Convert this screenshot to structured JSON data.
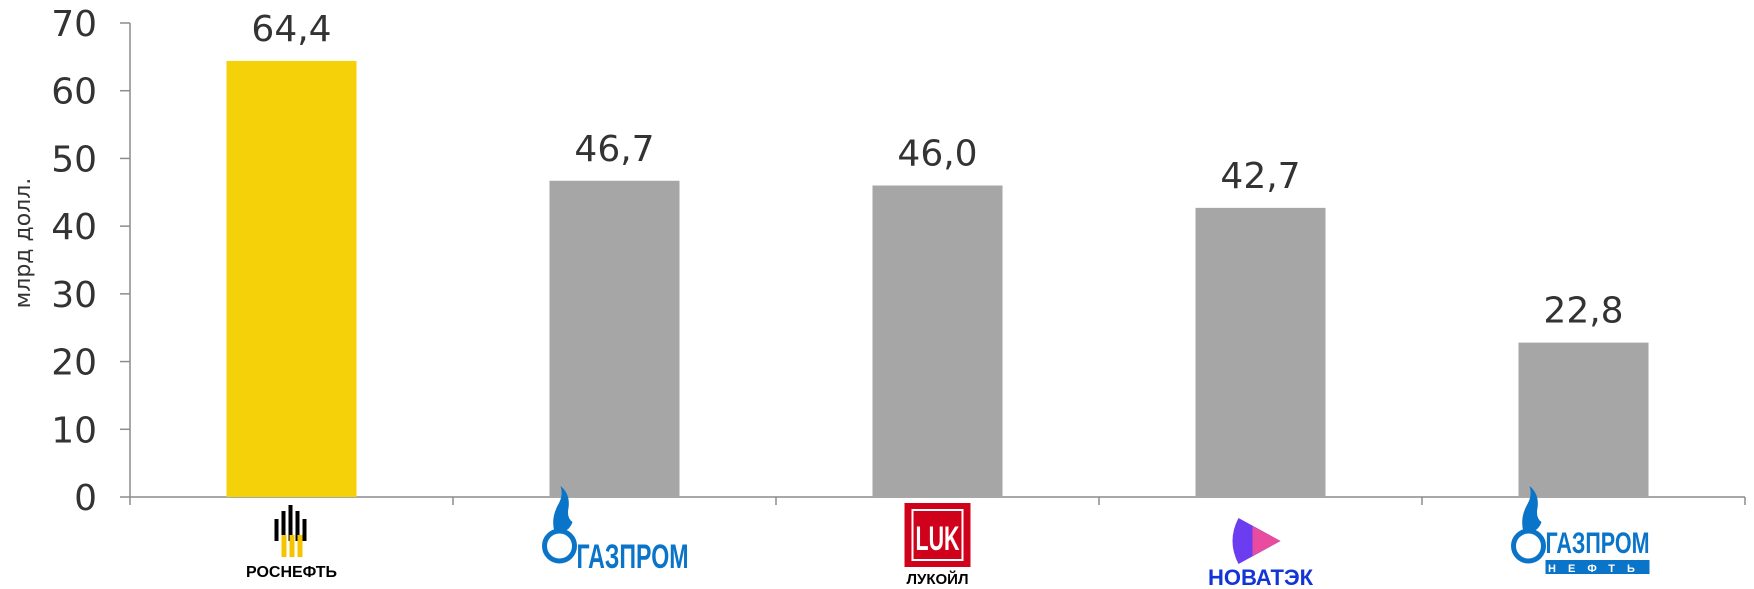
{
  "chart_data": {
    "type": "bar",
    "categories": [
      "РОСНЕФТЬ",
      "ГАЗПРОМ",
      "ЛУКОЙЛ",
      "НОВАТЭК",
      "ГАЗПРОМ НЕФТЬ"
    ],
    "values": [
      64.4,
      46.7,
      46.0,
      42.7,
      22.8
    ],
    "value_labels": [
      "64,4",
      "46,7",
      "46,0",
      "42,7",
      "22,8"
    ],
    "bar_colors": [
      "#F5D10A",
      "#A6A6A6",
      "#A6A6A6",
      "#A6A6A6",
      "#A6A6A6"
    ],
    "ylabel": "млрд долл.",
    "ylim": [
      0,
      70
    ],
    "yticks": [
      "0",
      "10",
      "20",
      "30",
      "40",
      "50",
      "60",
      "70"
    ],
    "grid": false,
    "category_logos": [
      {
        "icon": "rosneft-logo",
        "text": "РОСНЕФТЬ",
        "color": "#000000"
      },
      {
        "icon": "gazprom-logo",
        "text": "ГАЗПРОМ",
        "color": "#0A74C9"
      },
      {
        "icon": "lukoil-logo",
        "text": "ЛУКОЙЛ",
        "color": "#D0021B"
      },
      {
        "icon": "novatek-logo",
        "text": "НОВАТЭК",
        "color": "#1434D6"
      },
      {
        "icon": "gazprom-neft-logo",
        "text": "ГАЗПРОМ",
        "subtext": "НЕФТЬ",
        "color": "#0A74C9"
      }
    ]
  }
}
